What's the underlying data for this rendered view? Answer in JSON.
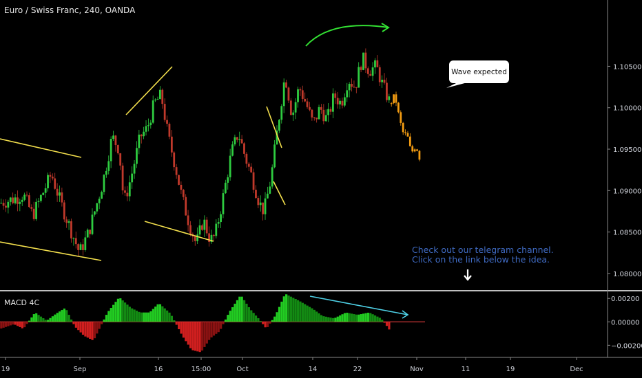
{
  "header": {
    "symbol_title": "Euro / Swiss Franc, 240, OANDA"
  },
  "indicator": {
    "title": "MACD 4C"
  },
  "annotations": {
    "callout": "Wave expected",
    "note_line1": "Check out our telegram channel.",
    "note_line2": "Click on the link below the idea."
  },
  "colors": {
    "background": "#000000",
    "bull": "#2ecc40",
    "bear": "#c0392b",
    "projection": "#f39c12",
    "trendlines": "#f4e04d",
    "arc": "#33e033",
    "divergence": "#4fd2e8",
    "note": "#3f6ac2",
    "macd_pos": "#22b322",
    "macd_neg": "#b31a1a"
  },
  "chart_data": [
    {
      "type": "line",
      "subtype": "candlestick",
      "title": "Euro / Swiss Franc, 240, OANDA",
      "x_ticks": [
        "19",
        "Sep",
        "16",
        "15:00",
        "Oct",
        "14",
        "22",
        "Nov",
        "11",
        "19",
        "Dec"
      ],
      "y_ticks": [
        1.105,
        1.1,
        1.095,
        1.09,
        1.085,
        1.08
      ],
      "ylim": [
        1.078,
        1.113
      ],
      "price_path": [
        {
          "t": 0,
          "p": 1.0885
        },
        {
          "t": 6,
          "p": 1.089
        },
        {
          "t": 10,
          "p": 1.0895
        },
        {
          "t": 14,
          "p": 1.087
        },
        {
          "t": 18,
          "p": 1.0895
        },
        {
          "t": 22,
          "p": 1.092
        },
        {
          "t": 26,
          "p": 1.0885
        },
        {
          "t": 30,
          "p": 1.0855
        },
        {
          "t": 34,
          "p": 1.0825
        },
        {
          "t": 38,
          "p": 1.085
        },
        {
          "t": 44,
          "p": 1.091
        },
        {
          "t": 48,
          "p": 1.0965
        },
        {
          "t": 51,
          "p": 1.095
        },
        {
          "t": 53,
          "p": 1.0885
        },
        {
          "t": 56,
          "p": 1.0915
        },
        {
          "t": 60,
          "p": 1.0965
        },
        {
          "t": 63,
          "p": 1.0975
        },
        {
          "t": 66,
          "p": 1.1005
        },
        {
          "t": 69,
          "p": 1.1015
        },
        {
          "t": 72,
          "p": 1.0965
        },
        {
          "t": 75,
          "p": 1.093
        },
        {
          "t": 78,
          "p": 1.089
        },
        {
          "t": 81,
          "p": 1.086
        },
        {
          "t": 84,
          "p": 1.0835
        },
        {
          "t": 87,
          "p": 1.0865
        },
        {
          "t": 90,
          "p": 1.084
        },
        {
          "t": 92,
          "p": 1.0845
        },
        {
          "t": 95,
          "p": 1.0885
        },
        {
          "t": 99,
          "p": 1.0945
        },
        {
          "t": 102,
          "p": 1.097
        },
        {
          "t": 105,
          "p": 1.094
        },
        {
          "t": 108,
          "p": 1.0915
        },
        {
          "t": 111,
          "p": 1.0885
        },
        {
          "t": 113,
          "p": 1.0875
        },
        {
          "t": 116,
          "p": 1.0915
        },
        {
          "t": 119,
          "p": 1.098
        },
        {
          "t": 122,
          "p": 1.104
        },
        {
          "t": 125,
          "p": 1.099
        },
        {
          "t": 128,
          "p": 1.1025
        },
        {
          "t": 131,
          "p": 1.1005
        },
        {
          "t": 134,
          "p": 1.098
        },
        {
          "t": 137,
          "p": 1.1
        },
        {
          "t": 140,
          "p": 1.0985
        },
        {
          "t": 143,
          "p": 1.1015
        },
        {
          "t": 146,
          "p": 1.1005
        },
        {
          "t": 149,
          "p": 1.1035
        },
        {
          "t": 152,
          "p": 1.1025
        },
        {
          "t": 155,
          "p": 1.106
        },
        {
          "t": 158,
          "p": 1.1045
        },
        {
          "t": 161,
          "p": 1.105
        },
        {
          "t": 164,
          "p": 1.1025
        },
        {
          "t": 167,
          "p": 1.1005
        }
      ],
      "projection_path": [
        {
          "t": 167,
          "p": 1.1005
        },
        {
          "t": 169,
          "p": 1.1015
        },
        {
          "t": 171,
          "p": 1.0985
        },
        {
          "t": 173,
          "p": 1.0965
        },
        {
          "t": 174,
          "p": 1.097
        },
        {
          "t": 176,
          "p": 1.0945
        },
        {
          "t": 178,
          "p": 1.0955
        },
        {
          "t": 180,
          "p": 1.0935
        }
      ]
    },
    {
      "type": "bar",
      "title": "MACD 4C",
      "y_ticks": [
        0.002,
        0.0,
        -0.002
      ],
      "ylim": [
        -0.0028,
        0.0026
      ],
      "histogram_path": [
        {
          "t": 0,
          "v": -0.0006
        },
        {
          "t": 6,
          "v": -0.0002
        },
        {
          "t": 10,
          "v": -0.0006
        },
        {
          "t": 15,
          "v": 0.0008
        },
        {
          "t": 20,
          "v": 0.0001
        },
        {
          "t": 24,
          "v": 0.0007
        },
        {
          "t": 28,
          "v": 0.0012
        },
        {
          "t": 32,
          "v": -0.0004
        },
        {
          "t": 36,
          "v": -0.0012
        },
        {
          "t": 40,
          "v": -0.0016
        },
        {
          "t": 46,
          "v": 0.0008
        },
        {
          "t": 51,
          "v": 0.0021
        },
        {
          "t": 56,
          "v": 0.0012
        },
        {
          "t": 60,
          "v": 0.0008
        },
        {
          "t": 64,
          "v": 0.0008
        },
        {
          "t": 68,
          "v": 0.0016
        },
        {
          "t": 73,
          "v": 0.0007
        },
        {
          "t": 78,
          "v": -0.0012
        },
        {
          "t": 82,
          "v": -0.0024
        },
        {
          "t": 86,
          "v": -0.0026
        },
        {
          "t": 90,
          "v": -0.0014
        },
        {
          "t": 94,
          "v": -0.0008
        },
        {
          "t": 98,
          "v": 0.0008
        },
        {
          "t": 103,
          "v": 0.0023
        },
        {
          "t": 107,
          "v": 0.0011
        },
        {
          "t": 111,
          "v": 0.0002
        },
        {
          "t": 114,
          "v": -0.0006
        },
        {
          "t": 118,
          "v": 0.0006
        },
        {
          "t": 122,
          "v": 0.0024
        },
        {
          "t": 128,
          "v": 0.0018
        },
        {
          "t": 134,
          "v": 0.0011
        },
        {
          "t": 138,
          "v": 0.0005
        },
        {
          "t": 143,
          "v": 0.0003
        },
        {
          "t": 148,
          "v": 0.0008
        },
        {
          "t": 153,
          "v": 0.0006
        },
        {
          "t": 158,
          "v": 0.0008
        },
        {
          "t": 163,
          "v": 0.0003
        },
        {
          "t": 165,
          "v": -0.0002
        },
        {
          "t": 167,
          "v": -0.0008
        }
      ]
    }
  ]
}
